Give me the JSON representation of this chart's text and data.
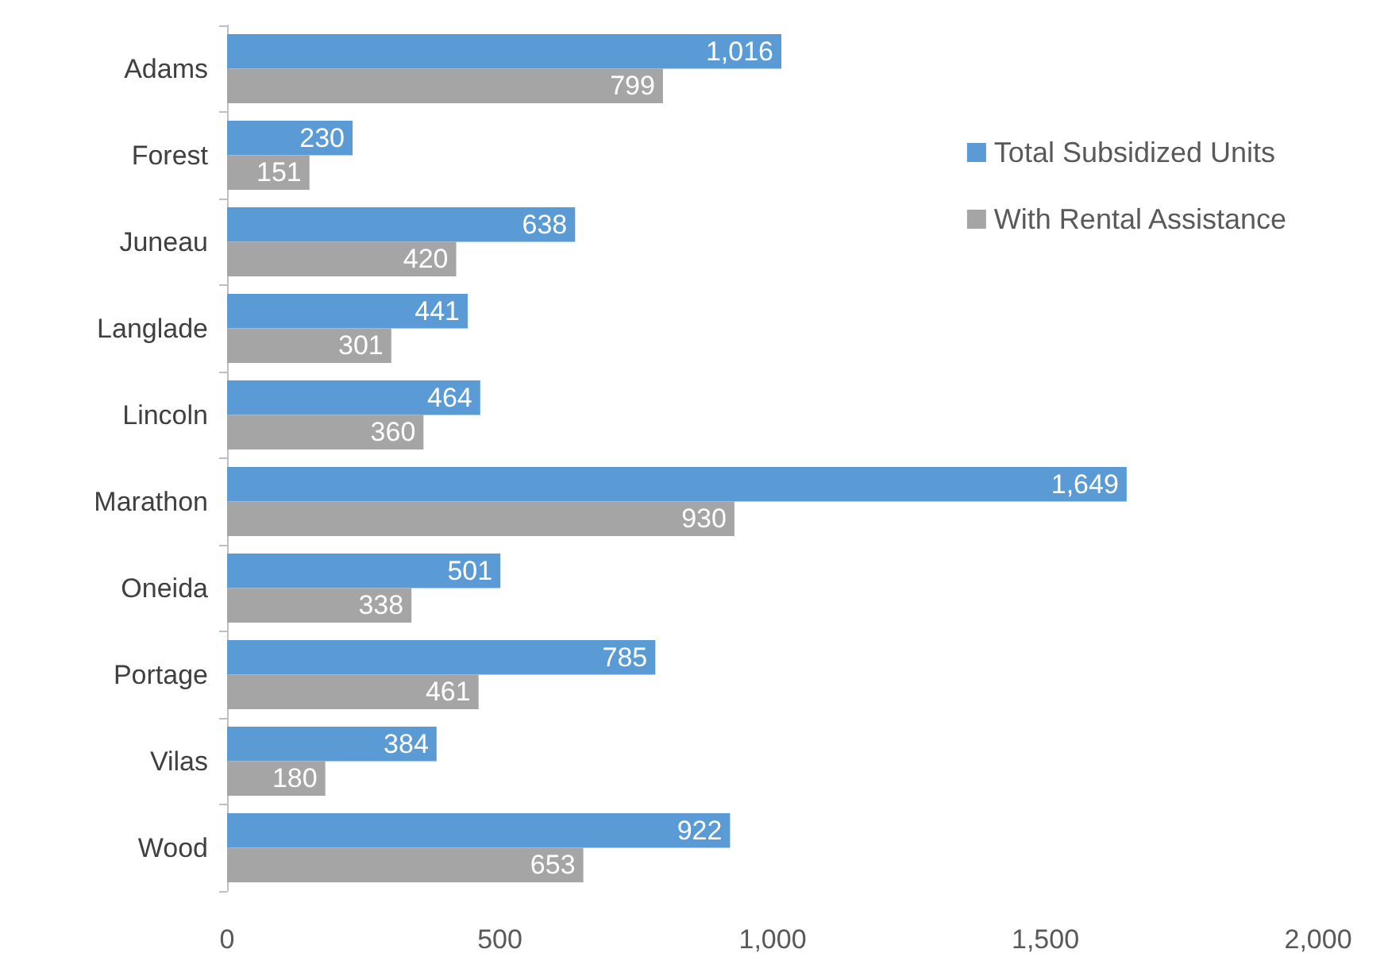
{
  "chart_data": {
    "type": "bar",
    "orientation": "horizontal",
    "categories": [
      "Adams",
      "Forest",
      "Juneau",
      "Langlade",
      "Lincoln",
      "Marathon",
      "Oneida",
      "Portage",
      "Vilas",
      "Wood"
    ],
    "series": [
      {
        "name": "Total Subsidized Units",
        "color": "#5b9bd5",
        "values": [
          1016,
          230,
          638,
          441,
          464,
          1649,
          501,
          785,
          384,
          922
        ],
        "value_labels": [
          "1,016",
          "230",
          "638",
          "441",
          "464",
          "1,649",
          "501",
          "785",
          "384",
          "922"
        ]
      },
      {
        "name": "With Rental Assistance",
        "color": "#a5a5a5",
        "values": [
          799,
          151,
          420,
          301,
          360,
          930,
          338,
          461,
          180,
          653
        ],
        "value_labels": [
          "799",
          "151",
          "420",
          "301",
          "360",
          "930",
          "338",
          "461",
          "180",
          "653"
        ]
      }
    ],
    "xlim": [
      0,
      2000
    ],
    "xticks": [
      0,
      500,
      {
        "value": 1000,
        "label": "1,000"
      },
      {
        "value": 1500,
        "label": "1,500"
      },
      {
        "value": 2000,
        "label": "2,000"
      }
    ],
    "grid": false,
    "legend": "top right"
  }
}
